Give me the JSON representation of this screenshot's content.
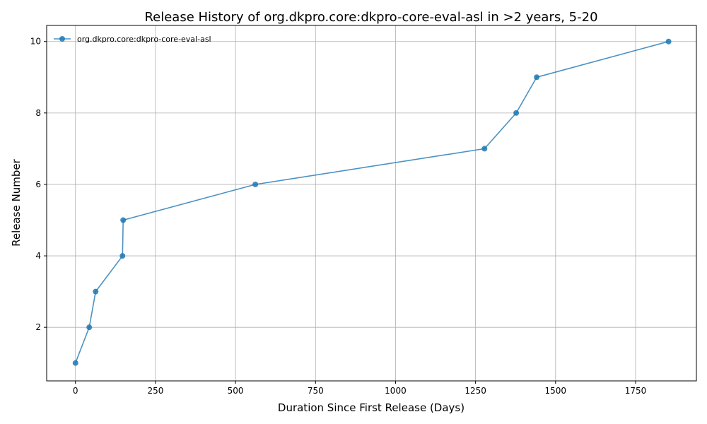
{
  "chart_data": {
    "type": "line",
    "title": "Release History of org.dkpro.core:dkpro-core-eval-asl in >2 years, 5-20",
    "xlabel": "Duration Since First Release (Days)",
    "ylabel": "Release Number",
    "xlim": [
      -90,
      1940
    ],
    "ylim": [
      0.5,
      10.45
    ],
    "xticks": [
      0,
      250,
      500,
      750,
      1000,
      1250,
      1500,
      1750
    ],
    "yticks": [
      2,
      4,
      6,
      8,
      10
    ],
    "grid": true,
    "legend_position": "upper-left",
    "series": [
      {
        "name": "org.dkpro.core:dkpro-core-eval-asl",
        "color": "#1f77b4",
        "marker": "circle",
        "x": [
          0,
          43,
          63,
          147,
          149,
          562,
          1278,
          1377,
          1441,
          1853
        ],
        "y": [
          1,
          2,
          3,
          4,
          5,
          6,
          7,
          8,
          9,
          10
        ]
      }
    ]
  }
}
